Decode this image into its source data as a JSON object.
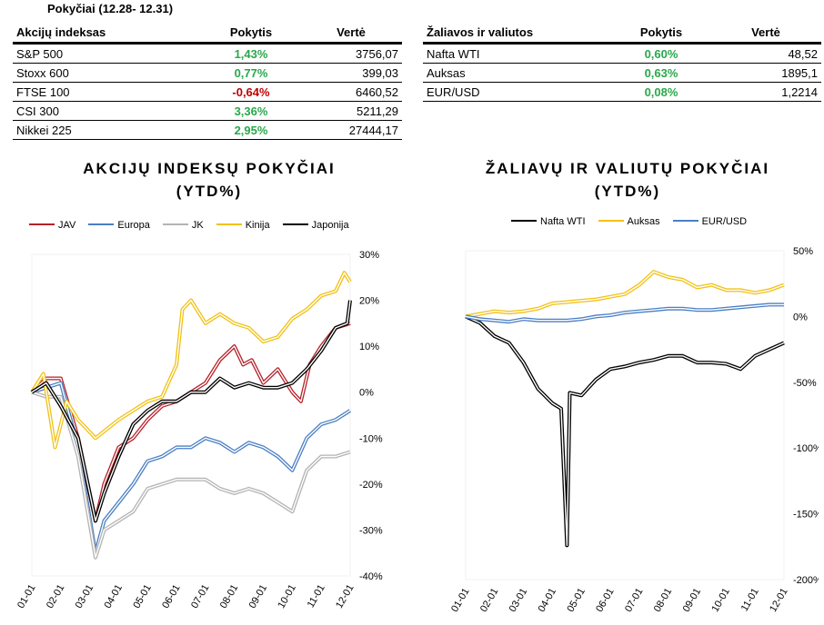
{
  "caption": "Pokyčiai (12.28- 12.31)",
  "table_left": {
    "headers": [
      "Akcijų indeksas",
      "Pokytis",
      "Vertė"
    ],
    "rows": [
      {
        "name": "S&P 500",
        "change": "1,43%",
        "value": "3756,07",
        "sign": "pos"
      },
      {
        "name": "Stoxx 600",
        "change": "0,77%",
        "value": "399,03",
        "sign": "pos"
      },
      {
        "name": "FTSE 100",
        "change": "-0,64%",
        "value": "6460,52",
        "sign": "neg"
      },
      {
        "name": "CSI 300",
        "change": "3,36%",
        "value": "5211,29",
        "sign": "pos"
      },
      {
        "name": "Nikkei 225",
        "change": "2,95%",
        "value": "27444,17",
        "sign": "pos"
      }
    ]
  },
  "table_right": {
    "headers": [
      "Žaliavos ir valiutos",
      "Pokytis",
      "Vertė"
    ],
    "rows": [
      {
        "name": "Nafta WTI",
        "change": "0,60%",
        "value": "48,52",
        "sign": "pos"
      },
      {
        "name": "Auksas",
        "change": "0,63%",
        "value": "1895,1",
        "sign": "pos"
      },
      {
        "name": "EUR/USD",
        "change": "0,08%",
        "value": "1,2214",
        "sign": "pos"
      }
    ]
  },
  "colors": {
    "positive": "#2aa84a",
    "negative": "#c00000"
  },
  "chart_data": [
    {
      "type": "line",
      "title_line1": "AKCIJŲ INDEKSŲ POKYČIAI",
      "title_line2": "(YTD%)",
      "x": [
        "01-01",
        "02-01",
        "03-01",
        "04-01",
        "05-01",
        "06-01",
        "07-01",
        "08-01",
        "09-01",
        "10-01",
        "11-01",
        "12-01"
      ],
      "ylim": [
        -40,
        30
      ],
      "yticks": [
        "30%",
        "20%",
        "10%",
        "0%",
        "-10%",
        "-20%",
        "-30%",
        "-40%"
      ],
      "legend_position": "top",
      "series": [
        {
          "name": "JAV",
          "color": "#b5222a",
          "points": [
            [
              0,
              0
            ],
            [
              0.5,
              3
            ],
            [
              1,
              3
            ],
            [
              1.6,
              -10
            ],
            [
              2.2,
              -28
            ],
            [
              2.5,
              -20
            ],
            [
              3,
              -12
            ],
            [
              3.5,
              -10
            ],
            [
              4,
              -6
            ],
            [
              4.5,
              -3
            ],
            [
              5,
              -2
            ],
            [
              5.5,
              0
            ],
            [
              6,
              2
            ],
            [
              6.5,
              7
            ],
            [
              7,
              10
            ],
            [
              7.3,
              6
            ],
            [
              7.6,
              7
            ],
            [
              8,
              2
            ],
            [
              8.5,
              5
            ],
            [
              9,
              0
            ],
            [
              9.3,
              -2
            ],
            [
              9.6,
              6
            ],
            [
              10,
              10
            ],
            [
              10.5,
              14
            ],
            [
              11,
              15
            ]
          ]
        },
        {
          "name": "Europa",
          "color": "#4a7fc4",
          "points": [
            [
              0,
              0
            ],
            [
              0.5,
              1
            ],
            [
              1,
              2
            ],
            [
              1.6,
              -12
            ],
            [
              2.2,
              -35
            ],
            [
              2.5,
              -28
            ],
            [
              3,
              -24
            ],
            [
              3.5,
              -20
            ],
            [
              4,
              -15
            ],
            [
              4.5,
              -14
            ],
            [
              5,
              -12
            ],
            [
              5.5,
              -12
            ],
            [
              6,
              -10
            ],
            [
              6.5,
              -11
            ],
            [
              7,
              -13
            ],
            [
              7.5,
              -11
            ],
            [
              8,
              -12
            ],
            [
              8.5,
              -14
            ],
            [
              9,
              -17
            ],
            [
              9.5,
              -10
            ],
            [
              10,
              -7
            ],
            [
              10.5,
              -6
            ],
            [
              11,
              -4
            ]
          ]
        },
        {
          "name": "JK",
          "color": "#b3b3b3",
          "points": [
            [
              0,
              0
            ],
            [
              0.5,
              -1
            ],
            [
              1,
              -1
            ],
            [
              1.6,
              -14
            ],
            [
              2.2,
              -36
            ],
            [
              2.5,
              -30
            ],
            [
              3,
              -28
            ],
            [
              3.5,
              -26
            ],
            [
              4,
              -21
            ],
            [
              4.5,
              -20
            ],
            [
              5,
              -19
            ],
            [
              5.5,
              -19
            ],
            [
              6,
              -19
            ],
            [
              6.5,
              -21
            ],
            [
              7,
              -22
            ],
            [
              7.5,
              -21
            ],
            [
              8,
              -22
            ],
            [
              8.5,
              -24
            ],
            [
              9,
              -26
            ],
            [
              9.5,
              -17
            ],
            [
              10,
              -14
            ],
            [
              10.5,
              -14
            ],
            [
              11,
              -13
            ]
          ]
        },
        {
          "name": "Kinija",
          "color": "#f2c114",
          "points": [
            [
              0,
              0
            ],
            [
              0.4,
              4
            ],
            [
              0.8,
              -12
            ],
            [
              1.2,
              -2
            ],
            [
              1.6,
              -6
            ],
            [
              2.2,
              -10
            ],
            [
              2.6,
              -8
            ],
            [
              3,
              -6
            ],
            [
              3.5,
              -4
            ],
            [
              4,
              -2
            ],
            [
              4.5,
              -1
            ],
            [
              5,
              6
            ],
            [
              5.2,
              18
            ],
            [
              5.5,
              20
            ],
            [
              6,
              15
            ],
            [
              6.5,
              17
            ],
            [
              7,
              15
            ],
            [
              7.5,
              14
            ],
            [
              8,
              11
            ],
            [
              8.5,
              12
            ],
            [
              9,
              16
            ],
            [
              9.5,
              18
            ],
            [
              10,
              21
            ],
            [
              10.5,
              22
            ],
            [
              10.8,
              26
            ],
            [
              11,
              24
            ]
          ]
        },
        {
          "name": "Japonija",
          "color": "#000000",
          "points": [
            [
              0,
              0
            ],
            [
              0.5,
              2
            ],
            [
              1,
              -3
            ],
            [
              1.6,
              -10
            ],
            [
              2.2,
              -28
            ],
            [
              2.5,
              -22
            ],
            [
              3,
              -14
            ],
            [
              3.5,
              -7
            ],
            [
              4,
              -4
            ],
            [
              4.5,
              -2
            ],
            [
              5,
              -2
            ],
            [
              5.5,
              0
            ],
            [
              6,
              0
            ],
            [
              6.5,
              3
            ],
            [
              7,
              1
            ],
            [
              7.5,
              2
            ],
            [
              8,
              1
            ],
            [
              8.5,
              1
            ],
            [
              9,
              2
            ],
            [
              9.5,
              5
            ],
            [
              10,
              9
            ],
            [
              10.5,
              14
            ],
            [
              10.9,
              15
            ],
            [
              11,
              20
            ]
          ]
        }
      ]
    },
    {
      "type": "line",
      "title_line1": "ŽALIAVŲ IR VALIUTŲ POKYČIAI",
      "title_line2": "(YTD%)",
      "x": [
        "01-01",
        "02-01",
        "03-01",
        "04-01",
        "05-01",
        "06-01",
        "07-01",
        "08-01",
        "09-01",
        "10-01",
        "11-01",
        "12-01"
      ],
      "ylim": [
        -200,
        50
      ],
      "yticks": [
        "50%",
        "0%",
        "-50%",
        "-100%",
        "-150%",
        "-200%"
      ],
      "legend_position": "top",
      "series": [
        {
          "name": "Nafta WTI",
          "color": "#000000",
          "points": [
            [
              0,
              0
            ],
            [
              0.5,
              -5
            ],
            [
              1,
              -15
            ],
            [
              1.5,
              -20
            ],
            [
              2,
              -35
            ],
            [
              2.5,
              -55
            ],
            [
              3,
              -66
            ],
            [
              3.3,
              -70
            ],
            [
              3.5,
              -174
            ],
            [
              3.6,
              -58
            ],
            [
              4,
              -60
            ],
            [
              4.5,
              -48
            ],
            [
              5,
              -40
            ],
            [
              5.5,
              -38
            ],
            [
              6,
              -35
            ],
            [
              6.5,
              -33
            ],
            [
              7,
              -30
            ],
            [
              7.5,
              -30
            ],
            [
              8,
              -35
            ],
            [
              8.5,
              -35
            ],
            [
              9,
              -36
            ],
            [
              9.5,
              -40
            ],
            [
              10,
              -30
            ],
            [
              10.5,
              -25
            ],
            [
              11,
              -20
            ]
          ]
        },
        {
          "name": "Auksas",
          "color": "#f2c114",
          "points": [
            [
              0,
              0
            ],
            [
              0.5,
              2
            ],
            [
              1,
              4
            ],
            [
              1.5,
              3
            ],
            [
              2,
              4
            ],
            [
              2.5,
              6
            ],
            [
              3,
              10
            ],
            [
              3.5,
              11
            ],
            [
              4,
              12
            ],
            [
              4.5,
              13
            ],
            [
              5,
              15
            ],
            [
              5.5,
              17
            ],
            [
              6,
              24
            ],
            [
              6.5,
              34
            ],
            [
              7,
              30
            ],
            [
              7.5,
              28
            ],
            [
              8,
              22
            ],
            [
              8.5,
              24
            ],
            [
              9,
              20
            ],
            [
              9.5,
              20
            ],
            [
              10,
              18
            ],
            [
              10.5,
              20
            ],
            [
              11,
              24
            ]
          ]
        },
        {
          "name": "EUR/USD",
          "color": "#4a7fc4",
          "points": [
            [
              0,
              0
            ],
            [
              0.5,
              -2
            ],
            [
              1,
              -3
            ],
            [
              1.5,
              -4
            ],
            [
              2,
              -2
            ],
            [
              2.5,
              -3
            ],
            [
              3,
              -3
            ],
            [
              3.5,
              -3
            ],
            [
              4,
              -2
            ],
            [
              4.5,
              0
            ],
            [
              5,
              1
            ],
            [
              5.5,
              3
            ],
            [
              6,
              4
            ],
            [
              6.5,
              5
            ],
            [
              7,
              6
            ],
            [
              7.5,
              6
            ],
            [
              8,
              5
            ],
            [
              8.5,
              5
            ],
            [
              9,
              6
            ],
            [
              9.5,
              7
            ],
            [
              10,
              8
            ],
            [
              10.5,
              9
            ],
            [
              11,
              9
            ]
          ]
        }
      ]
    }
  ]
}
